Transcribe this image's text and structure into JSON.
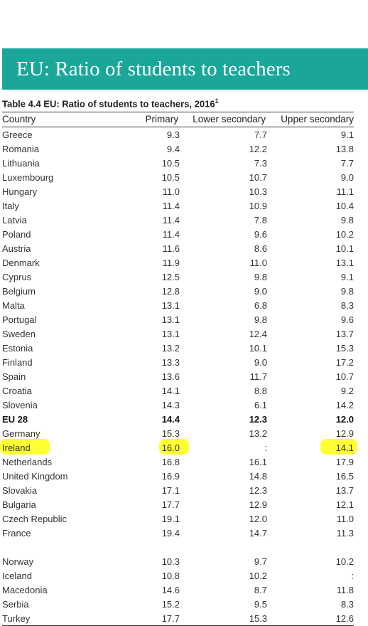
{
  "banner": {
    "title": "EU: Ratio of students to teachers"
  },
  "table": {
    "caption": "Table 4.4 EU: Ratio of students to teachers, 2016",
    "caption_sup": "1",
    "headers": [
      "Country",
      "Primary",
      "Lower secondary",
      "Upper secondary"
    ],
    "eu_rows": [
      [
        "Greece",
        "9.3",
        "7.7",
        "9.1"
      ],
      [
        "Romania",
        "9.4",
        "12.2",
        "13.8"
      ],
      [
        "Lithuania",
        "10.5",
        "7.3",
        "7.7"
      ],
      [
        "Luxembourg",
        "10.5",
        "10.7",
        "9.0"
      ],
      [
        "Hungary",
        "11.0",
        "10.3",
        "11.1"
      ],
      [
        "Italy",
        "11.4",
        "10.9",
        "10.4"
      ],
      [
        "Latvia",
        "11.4",
        "7.8",
        "9.8"
      ],
      [
        "Poland",
        "11.4",
        "9.6",
        "10.2"
      ],
      [
        "Austria",
        "11.6",
        "8.6",
        "10.1"
      ],
      [
        "Denmark",
        "11.9",
        "11.0",
        "13.1"
      ],
      [
        "Cyprus",
        "12.5",
        "9.8",
        "9.1"
      ],
      [
        "Belgium",
        "12.8",
        "9.0",
        "9.8"
      ],
      [
        "Malta",
        "13.1",
        "6.8",
        "8.3"
      ],
      [
        "Portugal",
        "13.1",
        "9.8",
        "9.6"
      ],
      [
        "Sweden",
        "13.1",
        "12.4",
        "13.7"
      ],
      [
        "Estonia",
        "13.2",
        "10.1",
        "15.3"
      ],
      [
        "Finland",
        "13.3",
        "9.0",
        "17.2"
      ],
      [
        "Spain",
        "13.6",
        "11.7",
        "10.7"
      ],
      [
        "Croatia",
        "14.1",
        "8.8",
        "9.2"
      ],
      [
        "Slovenia",
        "14.3",
        "6.1",
        "14.2"
      ],
      [
        "EU 28",
        "14.4",
        "12.3",
        "12.0"
      ],
      [
        "Germany",
        "15.3",
        "13.2",
        "12.9"
      ],
      [
        "Ireland",
        "16.0",
        ":",
        "14.1"
      ],
      [
        "Netherlands",
        "16.8",
        "16.1",
        "17.9"
      ],
      [
        "United Kingdom",
        "16.9",
        "14.8",
        "16.5"
      ],
      [
        "Slovakia",
        "17.1",
        "12.3",
        "13.7"
      ],
      [
        "Bulgaria",
        "17.7",
        "12.9",
        "12.1"
      ],
      [
        "Czech Republic",
        "19.1",
        "12.0",
        "11.0"
      ],
      [
        "France",
        "19.4",
        "14.7",
        "11.3"
      ]
    ],
    "other_rows": [
      [
        "Norway",
        "10.3",
        "9.7",
        "10.2"
      ],
      [
        "Iceland",
        "10.8",
        "10.2",
        ":"
      ],
      [
        "Macedonia",
        "14.6",
        "8.7",
        "11.8"
      ],
      [
        "Serbia",
        "15.2",
        "9.5",
        "8.3"
      ],
      [
        "Turkey",
        "17.7",
        "15.3",
        "12.6"
      ]
    ],
    "bold_row": "EU 28",
    "highlight_row": "Ireland",
    "highlight_color": "#ffff33",
    "banner_color": "#1aa79a"
  }
}
